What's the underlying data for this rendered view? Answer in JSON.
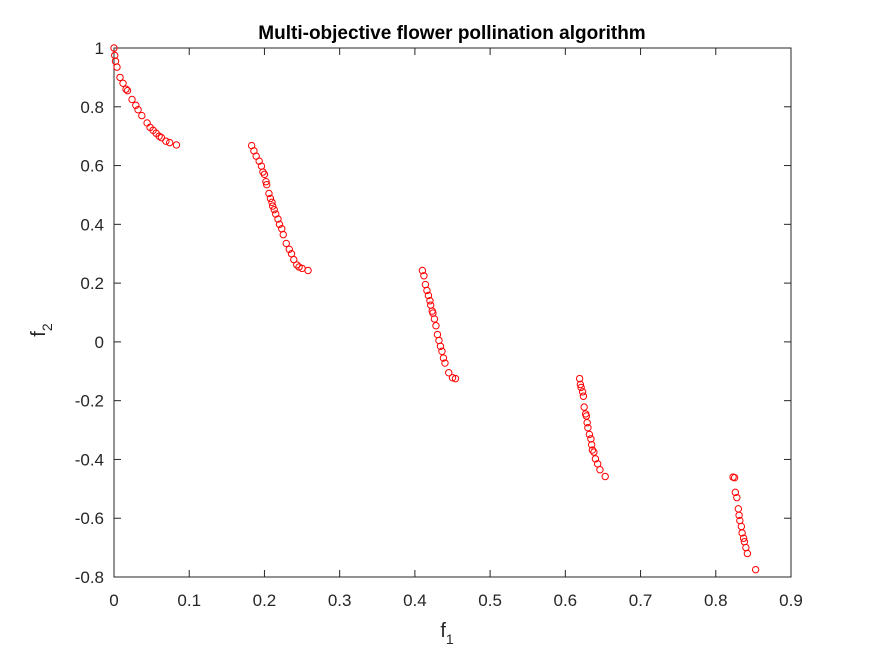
{
  "chart_data": {
    "type": "scatter",
    "title": "Multi-objective flower pollination algorithm",
    "xlabel": {
      "main": "f",
      "sub": "1"
    },
    "ylabel": {
      "main": "f",
      "sub": "2"
    },
    "xlim": [
      0,
      0.9
    ],
    "ylim": [
      -0.8,
      1
    ],
    "xticks": [
      0,
      0.1,
      0.2,
      0.3,
      0.4,
      0.5,
      0.6,
      0.7,
      0.8,
      0.9
    ],
    "xtick_labels": [
      "0",
      "0.1",
      "0.2",
      "0.3",
      "0.4",
      "0.5",
      "0.6",
      "0.7",
      "0.8",
      "0.9"
    ],
    "yticks": [
      -0.8,
      -0.6,
      -0.4,
      -0.2,
      0,
      0.2,
      0.4,
      0.6,
      0.8,
      1
    ],
    "ytick_labels": [
      "-0.8",
      "-0.6",
      "-0.4",
      "-0.2",
      "0",
      "0.2",
      "0.4",
      "0.6",
      "0.8",
      "1"
    ],
    "grid": false,
    "marker": "open-circle",
    "marker_color": "#ff0000",
    "axis_color": "#262626",
    "series": [
      {
        "points": [
          [
            0.0,
            1.0
          ],
          [
            0.001,
            0.975
          ],
          [
            0.002,
            0.955
          ],
          [
            0.004,
            0.935
          ],
          [
            0.008,
            0.9
          ],
          [
            0.012,
            0.88
          ],
          [
            0.016,
            0.86
          ],
          [
            0.018,
            0.855
          ],
          [
            0.024,
            0.825
          ],
          [
            0.029,
            0.805
          ],
          [
            0.032,
            0.79
          ],
          [
            0.037,
            0.77
          ],
          [
            0.044,
            0.745
          ],
          [
            0.048,
            0.73
          ],
          [
            0.052,
            0.72
          ],
          [
            0.056,
            0.71
          ],
          [
            0.06,
            0.7
          ],
          [
            0.063,
            0.695
          ],
          [
            0.069,
            0.683
          ],
          [
            0.074,
            0.678
          ],
          [
            0.083,
            0.67
          ],
          [
            0.183,
            0.668
          ],
          [
            0.186,
            0.65
          ],
          [
            0.189,
            0.632
          ],
          [
            0.193,
            0.615
          ],
          [
            0.196,
            0.598
          ],
          [
            0.198,
            0.578
          ],
          [
            0.2,
            0.57
          ],
          [
            0.202,
            0.545
          ],
          [
            0.203,
            0.535
          ],
          [
            0.206,
            0.505
          ],
          [
            0.208,
            0.488
          ],
          [
            0.21,
            0.475
          ],
          [
            0.211,
            0.462
          ],
          [
            0.213,
            0.45
          ],
          [
            0.215,
            0.435
          ],
          [
            0.218,
            0.418
          ],
          [
            0.22,
            0.4
          ],
          [
            0.223,
            0.385
          ],
          [
            0.225,
            0.365
          ],
          [
            0.229,
            0.335
          ],
          [
            0.233,
            0.315
          ],
          [
            0.236,
            0.3
          ],
          [
            0.239,
            0.28
          ],
          [
            0.243,
            0.262
          ],
          [
            0.246,
            0.255
          ],
          [
            0.25,
            0.25
          ],
          [
            0.258,
            0.243
          ],
          [
            0.41,
            0.243
          ],
          [
            0.412,
            0.225
          ],
          [
            0.414,
            0.195
          ],
          [
            0.416,
            0.175
          ],
          [
            0.418,
            0.158
          ],
          [
            0.42,
            0.14
          ],
          [
            0.421,
            0.125
          ],
          [
            0.423,
            0.105
          ],
          [
            0.424,
            0.098
          ],
          [
            0.426,
            0.078
          ],
          [
            0.428,
            0.055
          ],
          [
            0.43,
            0.025
          ],
          [
            0.432,
            0.005
          ],
          [
            0.434,
            -0.015
          ],
          [
            0.436,
            -0.032
          ],
          [
            0.438,
            -0.055
          ],
          [
            0.44,
            -0.072
          ],
          [
            0.445,
            -0.105
          ],
          [
            0.45,
            -0.122
          ],
          [
            0.454,
            -0.125
          ],
          [
            0.619,
            -0.125
          ],
          [
            0.62,
            -0.145
          ],
          [
            0.621,
            -0.155
          ],
          [
            0.623,
            -0.17
          ],
          [
            0.624,
            -0.185
          ],
          [
            0.625,
            -0.222
          ],
          [
            0.627,
            -0.245
          ],
          [
            0.628,
            -0.252
          ],
          [
            0.629,
            -0.275
          ],
          [
            0.63,
            -0.292
          ],
          [
            0.632,
            -0.315
          ],
          [
            0.634,
            -0.33
          ],
          [
            0.635,
            -0.35
          ],
          [
            0.636,
            -0.368
          ],
          [
            0.638,
            -0.375
          ],
          [
            0.64,
            -0.398
          ],
          [
            0.643,
            -0.415
          ],
          [
            0.646,
            -0.435
          ],
          [
            0.653,
            -0.458
          ],
          [
            0.823,
            -0.46
          ],
          [
            0.825,
            -0.462
          ],
          [
            0.826,
            -0.512
          ],
          [
            0.828,
            -0.53
          ],
          [
            0.83,
            -0.568
          ],
          [
            0.831,
            -0.59
          ],
          [
            0.832,
            -0.608
          ],
          [
            0.834,
            -0.628
          ],
          [
            0.835,
            -0.65
          ],
          [
            0.837,
            -0.668
          ],
          [
            0.838,
            -0.68
          ],
          [
            0.84,
            -0.7
          ],
          [
            0.842,
            -0.72
          ],
          [
            0.853,
            -0.775
          ]
        ]
      }
    ]
  }
}
